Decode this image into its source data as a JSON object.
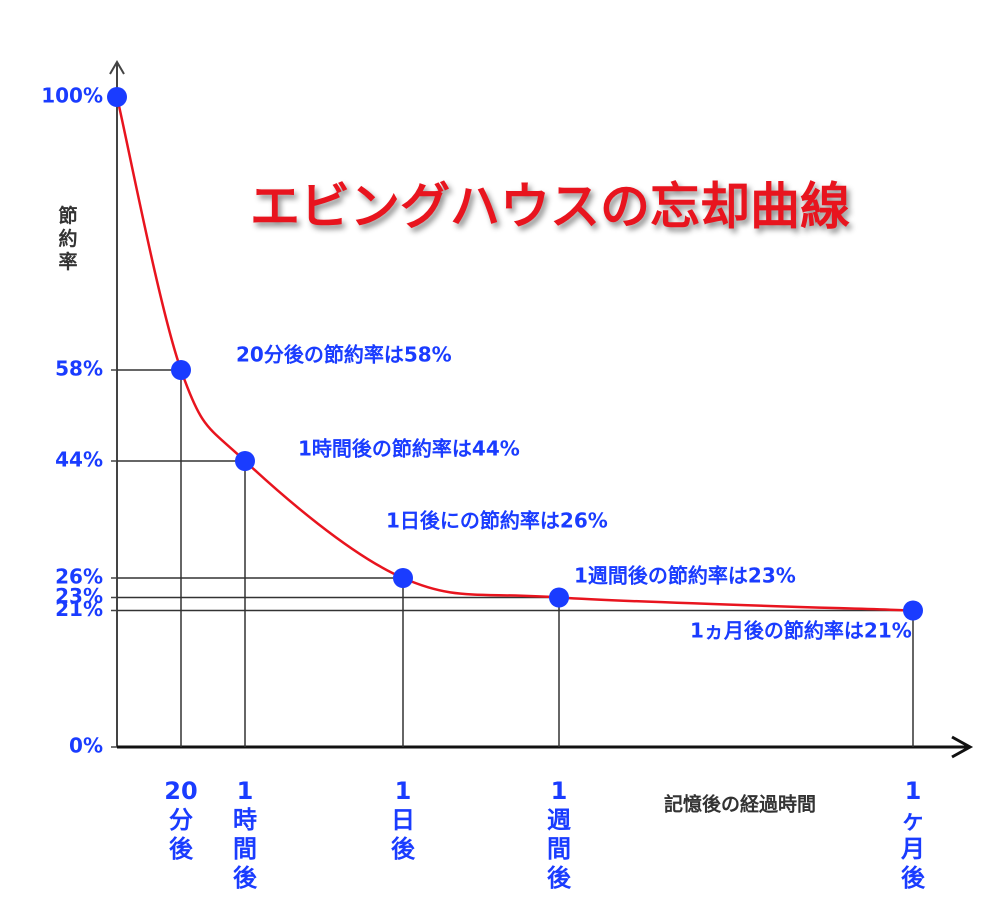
{
  "chart_data": {
    "type": "line",
    "title": "エビングハウスの忘却曲線",
    "y_label": "節約率",
    "x_label": "記憶後の経過時間",
    "categories": [
      null,
      "20分後",
      "1時間後",
      "1日後",
      "1週間後",
      "1ヶ月後"
    ],
    "series": [
      {
        "name": "節約率",
        "color": "#e8141e",
        "marker_color": "#1a3cff",
        "values": [
          100,
          58,
          44,
          26,
          23,
          21
        ]
      }
    ],
    "annotations": [
      null,
      "20分後の節約率は58%",
      "1時間後の節約率は44%",
      "1日後にの節約率は26%",
      "1週間後の節約率は23%",
      "1ヵ月後の節約率は21%"
    ],
    "ylim": [
      0,
      100
    ],
    "yticks": [
      {
        "value": 0,
        "label": "0%"
      },
      {
        "value": 21,
        "label": "21%"
      },
      {
        "value": 23,
        "label": "23%"
      },
      {
        "value": 26,
        "label": "26%"
      },
      {
        "value": 44,
        "label": "44%"
      },
      {
        "value": 58,
        "label": "58%"
      },
      {
        "value": 100,
        "label": "100%"
      }
    ]
  }
}
